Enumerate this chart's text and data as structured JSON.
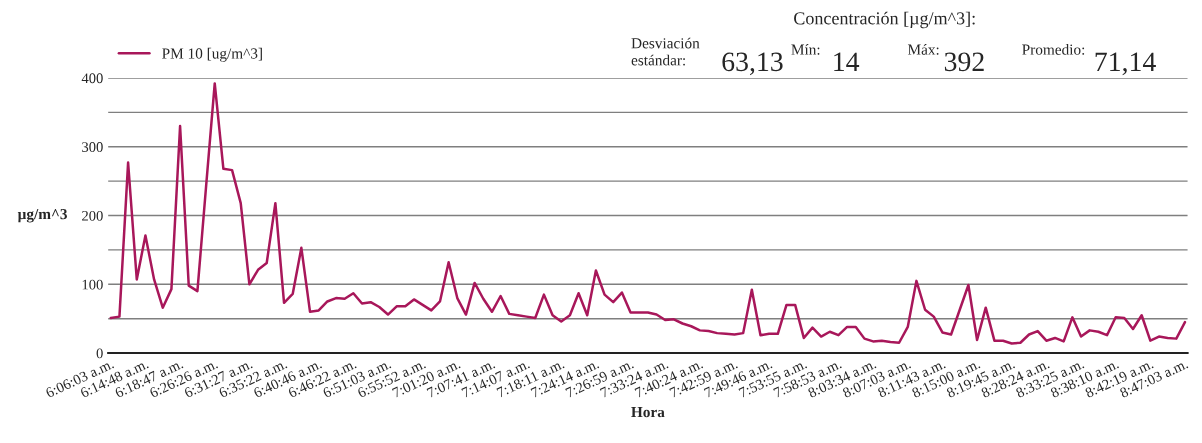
{
  "chart_data": {
    "type": "line",
    "xlabel": "Hora",
    "ylabel": "µg/m^3",
    "categories": [
      "6:06:03 a.m.",
      null,
      null,
      null,
      "6:14:48 a.m.",
      null,
      null,
      null,
      "6:18:47 a.m.",
      null,
      null,
      null,
      "6:26:26 a.m.",
      null,
      null,
      null,
      "6:31:27 a.m.",
      null,
      null,
      null,
      "6:35:22 a.m.",
      null,
      null,
      null,
      "6:40:46 a.m.",
      null,
      null,
      null,
      "6:46:22 a.m.",
      null,
      null,
      null,
      "6:51:03 a.m.",
      null,
      null,
      null,
      "6:55:52 a.m.",
      null,
      null,
      null,
      "7:01:20 a.m.",
      null,
      null,
      null,
      "7:07:41 a.m.",
      null,
      null,
      null,
      "7:14:07 a.m.",
      null,
      null,
      null,
      "7:18:11 a.m.",
      null,
      null,
      null,
      "7:24:14 a.m.",
      null,
      null,
      null,
      "7:26:59 a.m.",
      null,
      null,
      null,
      "7:33:24 a.m.",
      null,
      null,
      null,
      "7:40:24 a.m.",
      null,
      null,
      null,
      "7:42:59 a.m.",
      null,
      null,
      null,
      "7:49:46 a.m.",
      null,
      null,
      null,
      "7:53:55 a.m.",
      null,
      null,
      null,
      "7:58:53 a.m.",
      null,
      null,
      null,
      "8:03:34 a.m.",
      null,
      null,
      null,
      "8:07:03 a.m.",
      null,
      null,
      null,
      "8:11:43 a.m.",
      null,
      null,
      null,
      "8:15:00 a.m.",
      null,
      null,
      null,
      "8:19:45 a.m.",
      null,
      null,
      null,
      "8:28:24 a.m.",
      null,
      null,
      null,
      "8:33:25 a.m.",
      null,
      null,
      null,
      "8:38:10 a.m.",
      null,
      null,
      null,
      "8:42:19 a.m.",
      null,
      null,
      null,
      "8:47:03 a.m."
    ],
    "series": [
      {
        "name": "PM 10 [ug/m^3]",
        "color": "#a8175a",
        "values": [
          51,
          53,
          277,
          107,
          171,
          107,
          66,
          93,
          330,
          98,
          90,
          242,
          392,
          268,
          266,
          218,
          100,
          121,
          131,
          218,
          73,
          86,
          153,
          60,
          62,
          75,
          80,
          79,
          87,
          72,
          74,
          67,
          56,
          68,
          68,
          78,
          70,
          62,
          75,
          132,
          80,
          56,
          102,
          79,
          60,
          83,
          57,
          55,
          53,
          51,
          85,
          55,
          46,
          55,
          87,
          55,
          120,
          85,
          74,
          88,
          59,
          59,
          59,
          56,
          48,
          49,
          43,
          39,
          33,
          32,
          29,
          28,
          27,
          29,
          92,
          26,
          28,
          28,
          70,
          70,
          22,
          37,
          24,
          31,
          26,
          38,
          38,
          21,
          17,
          18,
          16,
          15,
          38,
          105,
          63,
          53,
          30,
          27,
          63,
          99,
          19,
          66,
          18,
          18,
          14,
          15,
          27,
          32,
          18,
          22,
          17,
          52,
          24,
          33,
          31,
          26,
          52,
          51,
          35,
          55,
          18,
          24,
          22,
          21,
          45
        ]
      }
    ],
    "ylim": [
      0,
      400
    ],
    "yticks": [
      0,
      {
        "value": 50,
        "label": null
      },
      100,
      {
        "value": 150,
        "label": null
      },
      200,
      {
        "value": 250,
        "label": null
      },
      300,
      {
        "value": 350,
        "label": null
      },
      400
    ],
    "grid": "y",
    "legend": "top left",
    "marker": "none",
    "line_style": "solid",
    "annotations": [
      "Concentración [µg/m^3]:",
      "Desviación\nestándar:",
      "63,13",
      "Mín:",
      "14",
      "Máx:",
      "392",
      "Promedio:",
      "71,14"
    ]
  }
}
